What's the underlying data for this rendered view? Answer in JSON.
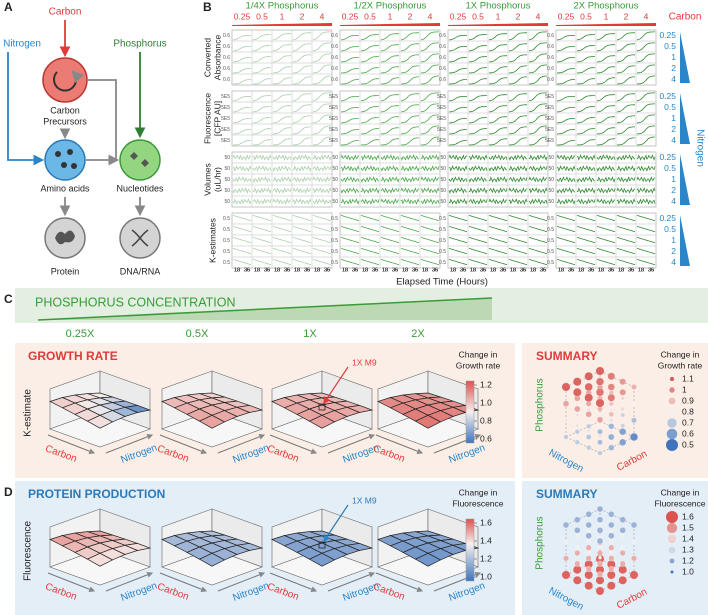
{
  "panel_a": {
    "label": "A",
    "carbon": "Carbon",
    "nitrogen": "Nitrogen",
    "phosphorus": "Phosphorus",
    "precursors": [
      "Carbon",
      "Precursors"
    ],
    "amino": "Amino acids",
    "nucleotides": "Nucleotides",
    "protein": "Protein",
    "dna": "DNA/RNA"
  },
  "panel_b": {
    "label": "B",
    "columns": [
      "1/4X Phosphorus",
      "1/2X Phosphorus",
      "1X Phosphorus",
      "2X Phosphorus"
    ],
    "carbon_levels": [
      "0.25",
      "0.5",
      "1",
      "2",
      "4"
    ],
    "carbon_label": "Carbon",
    "rows": [
      {
        "label": [
          "Converted",
          "Absorbance"
        ],
        "tick": "0.6"
      },
      {
        "label": [
          "Fluorescence",
          "[CFP AU]"
        ],
        "tick": "5E5"
      },
      {
        "label": [
          "Volumes",
          "(uL/hr)"
        ],
        "tick": "50"
      },
      {
        "label": [
          "K-estimates"
        ],
        "tick": "0.5"
      }
    ],
    "nitrogen_levels": [
      "0.25",
      "0.5",
      "1",
      "2",
      "4"
    ],
    "nitrogen_label": "Nitrogen",
    "time_ticks": [
      "18",
      "36"
    ],
    "x_label": "Elapsed Time (Hours)"
  },
  "panel_c": {
    "label": "C",
    "banner": "PHOSPHORUS  CONCENTRATION",
    "levels": [
      "0.25X",
      "0.5X",
      "1X",
      "2X"
    ],
    "main": {
      "title": "GROWTH RATE",
      "z_label": "K-estimate",
      "axes": [
        "Carbon",
        "Nitrogen"
      ],
      "marker": "1X M9",
      "legend_title": [
        "Change in",
        "Growth rate"
      ],
      "colorbar": [
        "1.2",
        "1.0",
        "0.8",
        "0.6"
      ]
    },
    "summary": {
      "title": "SUMMARY",
      "legend_title": [
        "Change in",
        "Growth rate"
      ],
      "sizes": [
        "1.1",
        "1",
        "0.9",
        "0.8",
        "0.7",
        "0.6",
        "0.5"
      ],
      "axes": [
        "Phosphorus",
        "Nitrogen",
        "Carbon"
      ]
    }
  },
  "panel_d": {
    "label": "D",
    "main": {
      "title": "PROTEIN PRODUCTION",
      "z_label": "Fluorescence",
      "axes": [
        "Carbon",
        "Nitrogen"
      ],
      "marker": "1X M9",
      "legend_title": [
        "Change in",
        "Fluorescence"
      ],
      "colorbar": [
        "1.6",
        "1.4",
        "1.2",
        "1.0"
      ]
    },
    "summary": {
      "title": "SUMMARY",
      "legend_title": [
        "Change in",
        "Fluorescence"
      ],
      "sizes": [
        "1.6",
        "1.5",
        "1.4",
        "1.3",
        "1.2",
        "1.0"
      ],
      "axes": [
        "Phosphorus",
        "Nitrogen",
        "Carbon"
      ]
    }
  }
}
